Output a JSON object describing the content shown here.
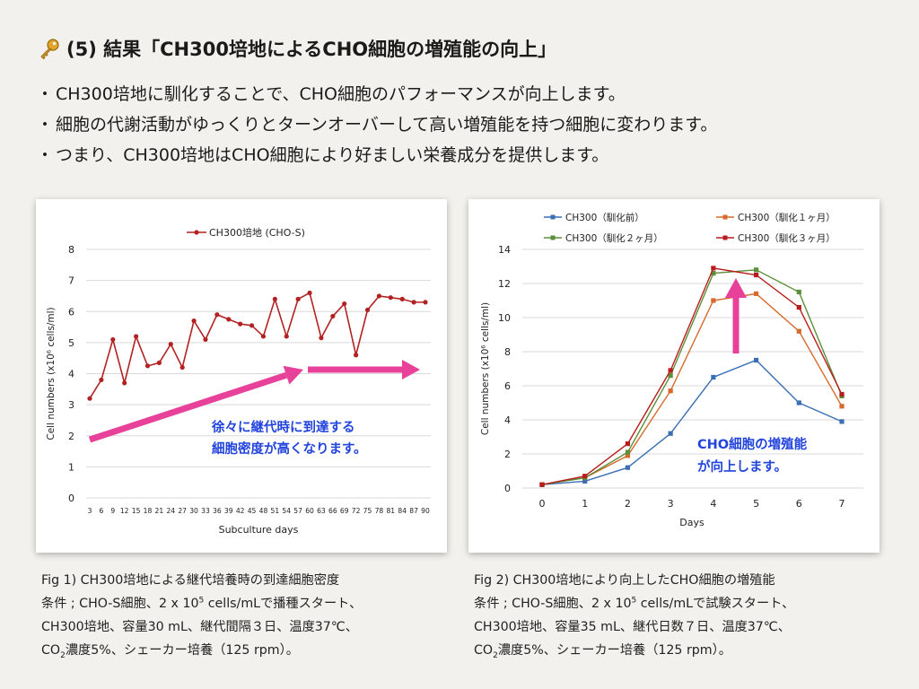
{
  "header": {
    "title": "(5) 結果「CH300培地によるCHO細胞の増殖能の向上」",
    "icon": "key-icon"
  },
  "bullets": [
    "CH300培地に馴化することで、CHO細胞のパフォーマンスが向上します。",
    "細胞の代謝活動がゆっくりとターンオーバーして高い増殖能を持つ細胞に変わります。",
    "つまり、CH300培地はCHO細胞により好ましい栄養成分を提供します。"
  ],
  "bullet_marker": "・",
  "chart_data": [
    {
      "type": "line",
      "legend": [
        "CH300培地 (CHO-S)"
      ],
      "legend_position": "top",
      "xlabel": "Subculture days",
      "ylabel": "Cell numbers (x10⁶ cells/ml)",
      "ylim": [
        0,
        8
      ],
      "yticks": [
        0,
        1,
        2,
        3,
        4,
        5,
        6,
        7,
        8
      ],
      "grid": true,
      "categories": [
        3,
        6,
        9,
        12,
        15,
        18,
        21,
        24,
        27,
        30,
        33,
        36,
        39,
        42,
        45,
        48,
        51,
        54,
        57,
        60,
        63,
        66,
        69,
        72,
        75,
        78,
        81,
        84,
        87,
        90
      ],
      "series": [
        {
          "name": "CH300培地 (CHO-S)",
          "color": "#b22222",
          "values": [
            3.2,
            3.8,
            5.1,
            3.7,
            5.2,
            4.25,
            4.35,
            4.95,
            4.2,
            5.7,
            5.1,
            5.9,
            5.75,
            5.6,
            5.55,
            5.2,
            6.4,
            5.2,
            6.4,
            6.6,
            5.15,
            5.85,
            6.25,
            4.6,
            6.05,
            6.5,
            6.45,
            6.4,
            6.3,
            6.3
          ]
        }
      ],
      "annotation": [
        "徐々に継代時に到達する",
        "細胞密度が高くなります。"
      ],
      "annotation_color": "#2244dd",
      "arrow_color": "#e8419a"
    },
    {
      "type": "line",
      "xlabel": "Days",
      "ylabel": "Cell numbers (x10⁶ cells/ml)",
      "ylim": [
        0,
        14
      ],
      "yticks": [
        0,
        2,
        4,
        6,
        8,
        10,
        12,
        14
      ],
      "grid": true,
      "legend_position": "top",
      "x": [
        0,
        1,
        2,
        3,
        4,
        5,
        6,
        7
      ],
      "series": [
        {
          "name": "CH300（馴化前）",
          "color": "#3a6fb5",
          "marker": "square",
          "values": [
            0.2,
            0.4,
            1.2,
            3.2,
            6.5,
            7.5,
            5.0,
            3.9
          ]
        },
        {
          "name": "CH300（馴化１ヶ月）",
          "color": "#d66a2c",
          "marker": "square",
          "values": [
            0.2,
            0.6,
            1.9,
            5.7,
            11.0,
            11.4,
            9.2,
            4.8
          ]
        },
        {
          "name": "CH300（馴化２ヶ月）",
          "color": "#5b8f3a",
          "marker": "square",
          "values": [
            0.2,
            0.6,
            2.1,
            6.6,
            12.6,
            12.8,
            11.5,
            5.4
          ]
        },
        {
          "name": "CH300（馴化３ヶ月）",
          "color": "#b81d1d",
          "marker": "square",
          "values": [
            0.2,
            0.7,
            2.6,
            6.9,
            12.9,
            12.5,
            10.6,
            5.5
          ]
        }
      ],
      "annotation": [
        "CHO細胞の増殖能",
        "が向上します。"
      ],
      "annotation_color": "#2244dd",
      "arrow_color": "#e8419a"
    }
  ],
  "captions": {
    "fig1": {
      "line1": "Fig 1) CH300培地による継代培養時の到達細胞密度",
      "line2_a": "条件 ; CHO-S細胞、2 x 10",
      "line2_sup": "5",
      "line2_b": " cells/mLで播種スタート、",
      "line3": "CH300培地、容量30 mL、継代間隔３日、温度37℃、",
      "line4_a": "CO",
      "line4_sub": "2",
      "line4_b": "濃度5%、シェーカー培養（125 rpm）。"
    },
    "fig2": {
      "line1": "Fig 2) CH300培地により向上したCHO細胞の増殖能",
      "line2_a": "条件 ; CHO-S細胞、2 x 10",
      "line2_sup": "5",
      "line2_b": " cells/mLで試験スタート、",
      "line3": "CH300培地、容量35 mL、継代日数７日、温度37℃、",
      "line4_a": "CO",
      "line4_sub": "2",
      "line4_b": "濃度5%、シェーカー培養（125 rpm）。"
    }
  }
}
